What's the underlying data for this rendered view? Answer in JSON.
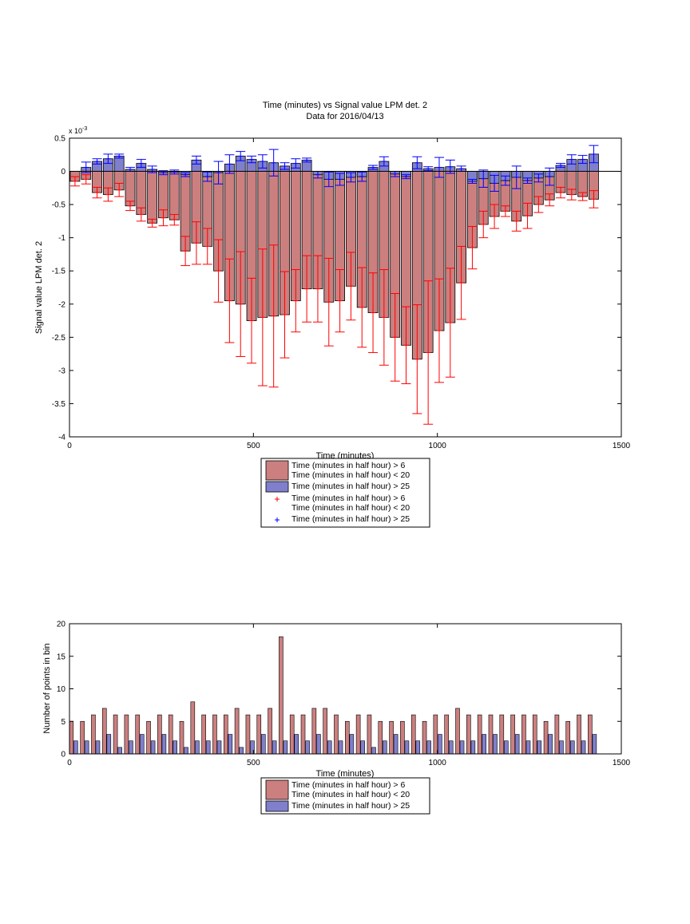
{
  "chart_data": [
    {
      "type": "bar",
      "title_line1": "Time (minutes) vs Signal value LPM det. 2",
      "title_line2": "Data for 2016/04/13",
      "xlabel": "Time (minutes)",
      "ylabel": "Signal value LPM det. 2",
      "exponent_label": "x 10",
      "exponent_power": "-3",
      "xlim": [
        0,
        1500
      ],
      "ylim": [
        -4,
        0.5
      ],
      "y_scale_factor": 0.001,
      "xticks": [
        0,
        500,
        1000,
        1500
      ],
      "yticks": [
        0.5,
        0,
        -0.5,
        -1,
        -1.5,
        -2,
        -2.5,
        -3,
        -3.5,
        -4
      ],
      "ytick_labels": [
        "0.5",
        "0",
        "-0.5",
        "-1",
        "-1.5",
        "-2",
        "-2.5",
        "-3",
        "-3.5",
        "-4"
      ],
      "grid": false,
      "legend_position": "below plot",
      "legend": [
        {
          "kind": "bar",
          "color": "#cc7f7f",
          "line1": "Time (minutes in half hour) > 6",
          "line2": "Time (minutes in half hour) < 20"
        },
        {
          "kind": "bar",
          "color": "#7f7fcc",
          "line1": "Time (minutes in half hour) > 25",
          "line2": ""
        },
        {
          "kind": "marker",
          "color": "#ff0000",
          "line1": "Time (minutes in half hour) > 6",
          "line2": "Time (minutes in half hour) < 20"
        },
        {
          "kind": "marker",
          "color": "#0000ff",
          "line1": "Time (minutes in half hour) > 25",
          "line2": ""
        }
      ],
      "series": [
        {
          "color": "#cc7f7f",
          "error_color": "#ff0000",
          "x": [
            15,
            45,
            75,
            105,
            135,
            165,
            195,
            225,
            255,
            285,
            315,
            345,
            375,
            405,
            435,
            465,
            495,
            525,
            555,
            585,
            615,
            645,
            675,
            705,
            735,
            765,
            795,
            825,
            855,
            885,
            915,
            945,
            975,
            1005,
            1035,
            1065,
            1095,
            1125,
            1155,
            1185,
            1215,
            1245,
            1275,
            1305,
            1335,
            1365,
            1395,
            1425
          ],
          "values": [
            -0.15,
            -0.12,
            -0.32,
            -0.35,
            -0.28,
            -0.52,
            -0.65,
            -0.78,
            -0.7,
            -0.73,
            -1.2,
            -1.08,
            -1.13,
            -1.5,
            -1.95,
            -2.0,
            -2.25,
            -2.2,
            -2.18,
            -2.16,
            -1.95,
            -1.77,
            -1.77,
            -1.97,
            -1.95,
            -1.73,
            -2.05,
            -2.13,
            -2.2,
            -2.5,
            -2.62,
            -2.83,
            -2.73,
            -2.4,
            -2.28,
            -1.68,
            -1.15,
            -0.8,
            -0.68,
            -0.6,
            -0.75,
            -0.67,
            -0.5,
            -0.43,
            -0.32,
            -0.35,
            -0.38,
            -0.42
          ],
          "errors": [
            0.07,
            0.07,
            0.08,
            0.1,
            0.1,
            0.07,
            0.1,
            0.06,
            0.12,
            0.08,
            0.22,
            0.32,
            0.27,
            0.47,
            0.63,
            0.79,
            0.64,
            1.03,
            1.07,
            0.65,
            0.47,
            0.5,
            0.5,
            0.66,
            0.47,
            0.51,
            0.6,
            0.6,
            0.72,
            0.66,
            0.58,
            0.82,
            1.08,
            0.78,
            0.82,
            0.55,
            0.32,
            0.2,
            0.18,
            0.08,
            0.15,
            0.19,
            0.12,
            0.09,
            0.08,
            0.08,
            0.06,
            0.13
          ]
        },
        {
          "color": "#7f7fcc",
          "error_color": "#0000ff",
          "x": [
            45,
            75,
            105,
            135,
            165,
            195,
            225,
            255,
            285,
            315,
            345,
            375,
            405,
            435,
            465,
            495,
            525,
            555,
            585,
            615,
            645,
            675,
            705,
            735,
            765,
            795,
            825,
            855,
            885,
            915,
            945,
            975,
            1005,
            1035,
            1065,
            1095,
            1125,
            1155,
            1185,
            1215,
            1245,
            1275,
            1305,
            1335,
            1365,
            1395,
            1425
          ],
          "values": [
            0.06,
            0.15,
            0.19,
            0.23,
            0.03,
            0.12,
            0.03,
            -0.02,
            -0.01,
            -0.05,
            0.17,
            -0.08,
            -0.02,
            0.11,
            0.23,
            0.18,
            0.15,
            0.13,
            0.08,
            0.12,
            0.17,
            -0.05,
            -0.12,
            -0.12,
            -0.09,
            -0.08,
            0.06,
            0.15,
            -0.04,
            -0.08,
            0.13,
            0.04,
            0.06,
            0.07,
            0.04,
            -0.15,
            -0.11,
            -0.18,
            -0.14,
            -0.09,
            -0.14,
            -0.1,
            -0.08,
            0.09,
            0.18,
            0.18,
            0.26
          ],
          "errors": [
            0.08,
            0.04,
            0.07,
            0.03,
            0.03,
            0.06,
            0.05,
            0.03,
            0.03,
            0.03,
            0.06,
            0.07,
            0.17,
            0.14,
            0.07,
            0.05,
            0.1,
            0.2,
            0.05,
            0.07,
            0.03,
            0.05,
            0.11,
            0.09,
            0.07,
            0.07,
            0.03,
            0.07,
            0.04,
            0.03,
            0.09,
            0.03,
            0.15,
            0.1,
            0.04,
            0.03,
            0.13,
            0.12,
            0.07,
            0.17,
            0.04,
            0.06,
            0.13,
            0.03,
            0.07,
            0.06,
            0.13
          ]
        }
      ]
    },
    {
      "type": "bar",
      "title_line1": "",
      "title_line2": "",
      "xlabel": "Time (minutes)",
      "ylabel": "Number of points in bin",
      "exponent_label": "",
      "exponent_power": "",
      "xlim": [
        0,
        1500
      ],
      "ylim": [
        0,
        20
      ],
      "y_scale_factor": 1,
      "xticks": [
        0,
        500,
        1000,
        1500
      ],
      "yticks": [
        0,
        5,
        10,
        15,
        20
      ],
      "ytick_labels": [
        "0",
        "5",
        "10",
        "15",
        "20"
      ],
      "grid": false,
      "legend_position": "below plot",
      "legend": [
        {
          "kind": "bar",
          "color": "#cc7f7f",
          "line1": "Time (minutes in half hour) > 6",
          "line2": "Time (minutes in half hour) < 20"
        },
        {
          "kind": "bar",
          "color": "#7f7fcc",
          "line1": "Time (minutes in half hour) > 25",
          "line2": ""
        }
      ],
      "series": [
        {
          "color": "#cc7f7f",
          "x": [
            5,
            35,
            65,
            95,
            125,
            155,
            185,
            215,
            245,
            275,
            305,
            335,
            365,
            395,
            425,
            455,
            485,
            515,
            545,
            575,
            605,
            635,
            665,
            695,
            725,
            755,
            785,
            815,
            845,
            875,
            905,
            935,
            965,
            995,
            1025,
            1055,
            1085,
            1115,
            1145,
            1175,
            1205,
            1235,
            1265,
            1295,
            1325,
            1355,
            1385,
            1415
          ],
          "values": [
            5,
            5,
            6,
            7,
            6,
            6,
            6,
            5,
            6,
            6,
            5,
            8,
            6,
            6,
            6,
            7,
            6,
            6,
            7,
            18,
            6,
            6,
            7,
            7,
            6,
            5,
            6,
            6,
            5,
            5,
            5,
            6,
            5,
            6,
            6,
            7,
            6,
            6,
            6,
            6,
            6,
            6,
            6,
            5,
            6,
            5,
            6,
            6
          ]
        },
        {
          "color": "#7f7fcc",
          "x": [
            17,
            47,
            77,
            107,
            137,
            167,
            197,
            227,
            257,
            287,
            317,
            347,
            377,
            407,
            437,
            467,
            497,
            527,
            557,
            587,
            617,
            647,
            677,
            707,
            737,
            767,
            797,
            827,
            857,
            887,
            917,
            947,
            977,
            1007,
            1037,
            1067,
            1097,
            1127,
            1157,
            1187,
            1217,
            1247,
            1277,
            1307,
            1337,
            1367,
            1397,
            1427
          ],
          "values": [
            2,
            2,
            2,
            3,
            1,
            2,
            3,
            2,
            3,
            2,
            1,
            2,
            2,
            2,
            3,
            1,
            2,
            3,
            2,
            2,
            3,
            2,
            3,
            2,
            2,
            3,
            2,
            1,
            2,
            3,
            2,
            2,
            2,
            3,
            2,
            2,
            2,
            3,
            3,
            2,
            3,
            2,
            2,
            3,
            2,
            2,
            2,
            3
          ]
        }
      ]
    }
  ]
}
